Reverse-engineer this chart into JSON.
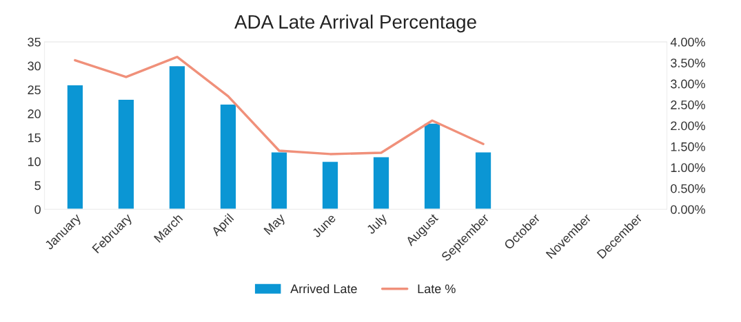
{
  "chart_data": {
    "type": "bar",
    "title": "ADA Late Arrival Percentage",
    "categories": [
      "January",
      "February",
      "March",
      "April",
      "May",
      "June",
      "July",
      "August",
      "September",
      "October",
      "November",
      "December"
    ],
    "series": [
      {
        "name": "Arrived Late",
        "color": "#0b96d4",
        "values": [
          26,
          23,
          30,
          22,
          12,
          10,
          11,
          18,
          12,
          null,
          null,
          null
        ]
      },
      {
        "name": "Late %",
        "type": "line",
        "axis": "y2",
        "color": "#f0907a",
        "values": [
          3.56,
          3.16,
          3.64,
          2.7,
          1.4,
          1.32,
          1.35,
          2.12,
          1.56,
          null,
          null,
          null
        ]
      }
    ],
    "ylim": [
      0,
      35
    ],
    "yticks": [
      0,
      5,
      10,
      15,
      20,
      25,
      30,
      35
    ],
    "y2lim": [
      0,
      4
    ],
    "y2ticks": [
      {
        "value": 0,
        "label": "0.00%"
      },
      {
        "value": 0.5,
        "label": "0.50%"
      },
      {
        "value": 1,
        "label": "1.00%"
      },
      {
        "value": 1.5,
        "label": "1.50%"
      },
      {
        "value": 2,
        "label": "2.00%"
      },
      {
        "value": 2.5,
        "label": "2.50%"
      },
      {
        "value": 3,
        "label": "3.00%"
      },
      {
        "value": 3.5,
        "label": "3.50%"
      },
      {
        "value": 4,
        "label": "4.00%"
      }
    ],
    "grid": false,
    "legend": "bottom",
    "marker": "none",
    "line_style": "solid"
  }
}
